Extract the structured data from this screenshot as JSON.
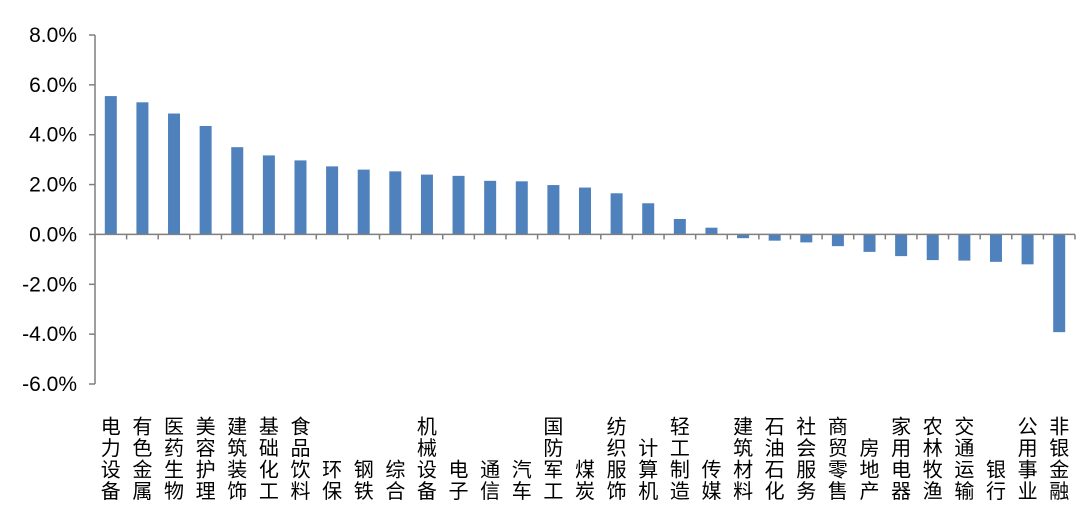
{
  "chart_data": {
    "type": "bar",
    "title": "",
    "xlabel": "",
    "ylabel": "",
    "ylim": [
      -6.0,
      8.0
    ],
    "ytick_values": [
      -6.0,
      -4.0,
      -2.0,
      0.0,
      2.0,
      4.0,
      6.0,
      8.0
    ],
    "ytick_labels": [
      "-6.0%",
      "-4.0%",
      "-2.0%",
      "0.0%",
      "2.0%",
      "4.0%",
      "6.0%",
      "8.0%"
    ],
    "grid": false,
    "legend": "none",
    "bar_color": "#4F81BD",
    "axis_color": "#7f7f7f",
    "categories": [
      "电力设备",
      "有色金属",
      "医药生物",
      "美容护理",
      "建筑装饰",
      "基础化工",
      "食品饮料",
      "环保",
      "钢铁",
      "综合",
      "机械设备",
      "电子",
      "通信",
      "汽车",
      "国防军工",
      "煤炭",
      "纺织服饰",
      "计算机",
      "轻工制造",
      "传媒",
      "建筑材料",
      "石油石化",
      "社会服务",
      "商贸零售",
      "房地产",
      "家用电器",
      "农林牧渔",
      "交通运输",
      "银行",
      "公用事业",
      "非银金融"
    ],
    "values": [
      5.55,
      5.3,
      4.85,
      4.35,
      3.5,
      3.17,
      2.97,
      2.73,
      2.6,
      2.53,
      2.4,
      2.35,
      2.15,
      2.13,
      1.98,
      1.88,
      1.65,
      1.25,
      0.62,
      0.27,
      -0.15,
      -0.25,
      -0.32,
      -0.47,
      -0.7,
      -0.87,
      -1.03,
      -1.05,
      -1.1,
      -1.2,
      -3.92
    ]
  }
}
